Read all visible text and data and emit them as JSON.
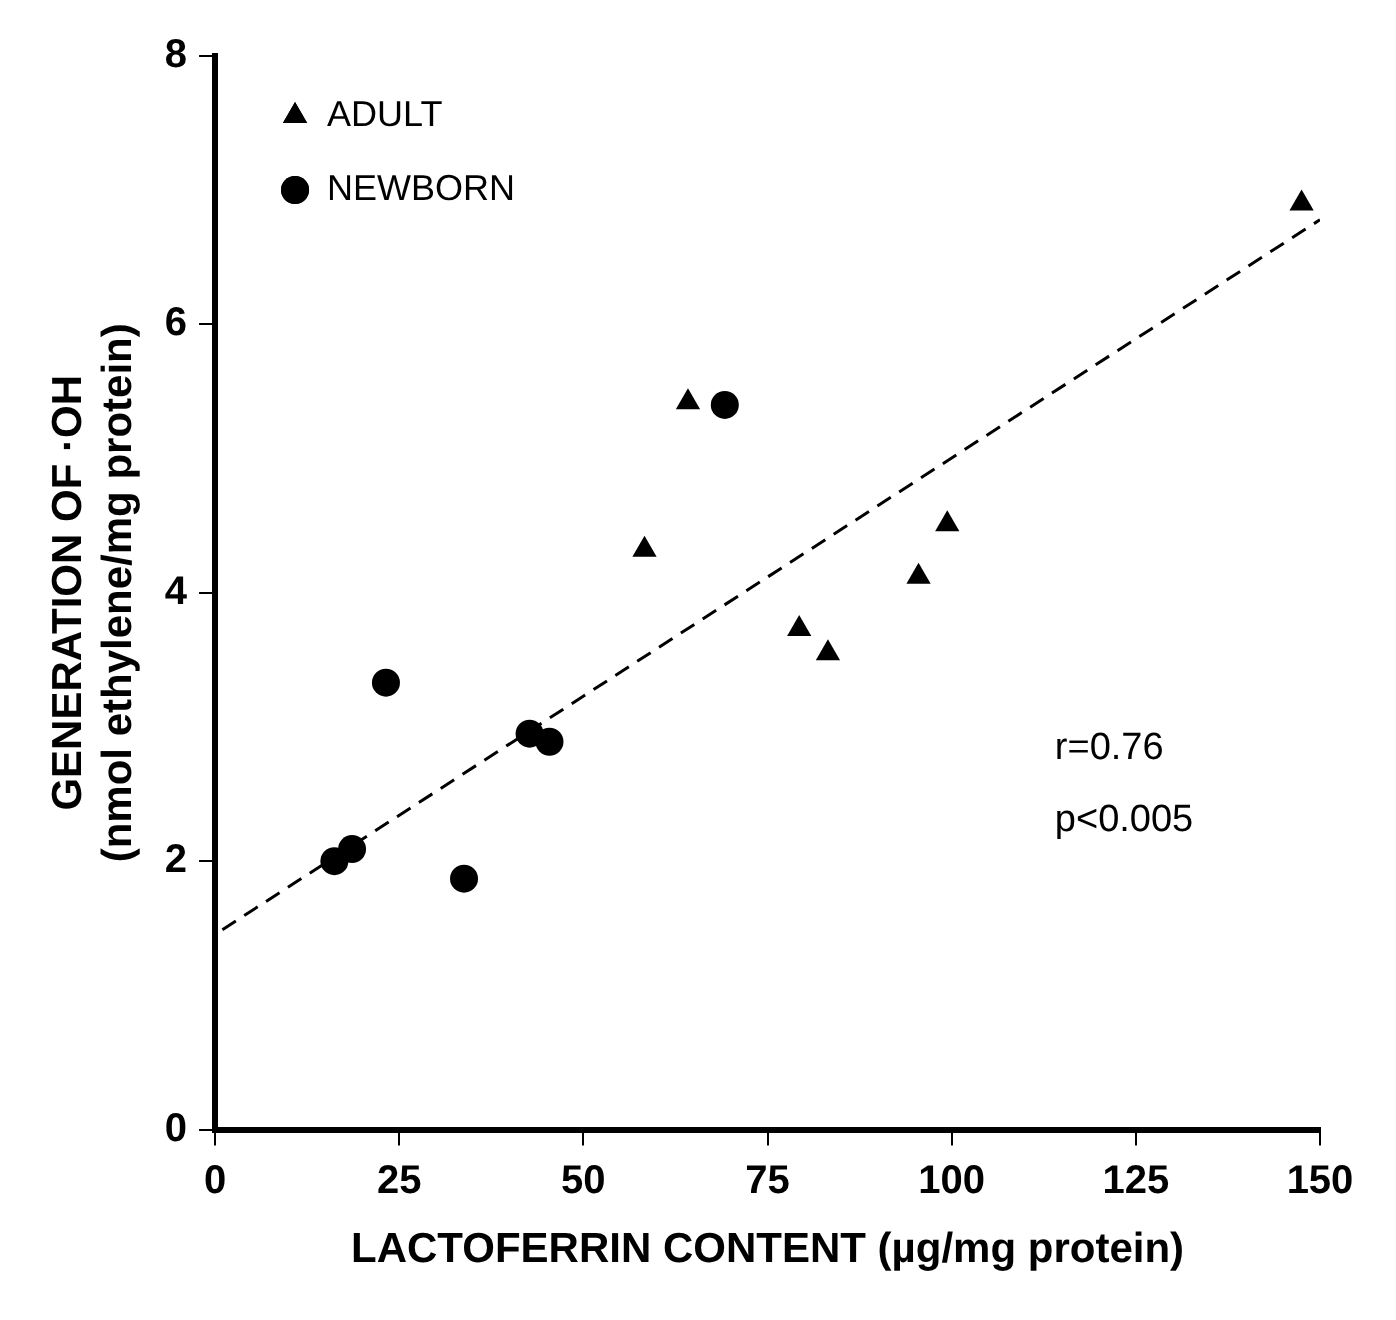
{
  "chart_data": {
    "type": "scatter",
    "xlabel": "LACTOFERRIN CONTENT (µg/mg protein)",
    "ylabel": "GENERATION OF ·OH\n(nmol ethylene/mg protein)",
    "xlim": [
      0,
      150
    ],
    "xticks": [
      0,
      25,
      50,
      75,
      100,
      125,
      150
    ],
    "ylim": [
      0,
      8
    ],
    "yticks": [
      0,
      2,
      4,
      6,
      8
    ],
    "grid": false,
    "legend": "top left",
    "series": [
      {
        "name": "ADULT",
        "color": "#000000",
        "marker": "triangle",
        "x": [
          147.5,
          64.2,
          58.3,
          99.4,
          95.5,
          79.3,
          83.2
        ],
        "values": [
          6.9,
          5.42,
          4.32,
          4.51,
          4.12,
          3.73,
          3.55
        ]
      },
      {
        "name": "NEWBORN",
        "color": "#000000",
        "marker": "circle",
        "x": [
          69.2,
          23.2,
          42.7,
          45.4,
          18.6,
          16.2,
          33.8
        ],
        "values": [
          5.4,
          3.33,
          2.95,
          2.89,
          2.09,
          2.0,
          1.87
        ]
      },
      {
        "type": "line",
        "color": "#000000",
        "marker": "none",
        "line_style": "dashed",
        "x": [
          1,
          150
        ],
        "values": [
          1.49,
          6.78
        ]
      }
    ],
    "annotations": [
      "r=0.76",
      "p<0.005"
    ]
  }
}
